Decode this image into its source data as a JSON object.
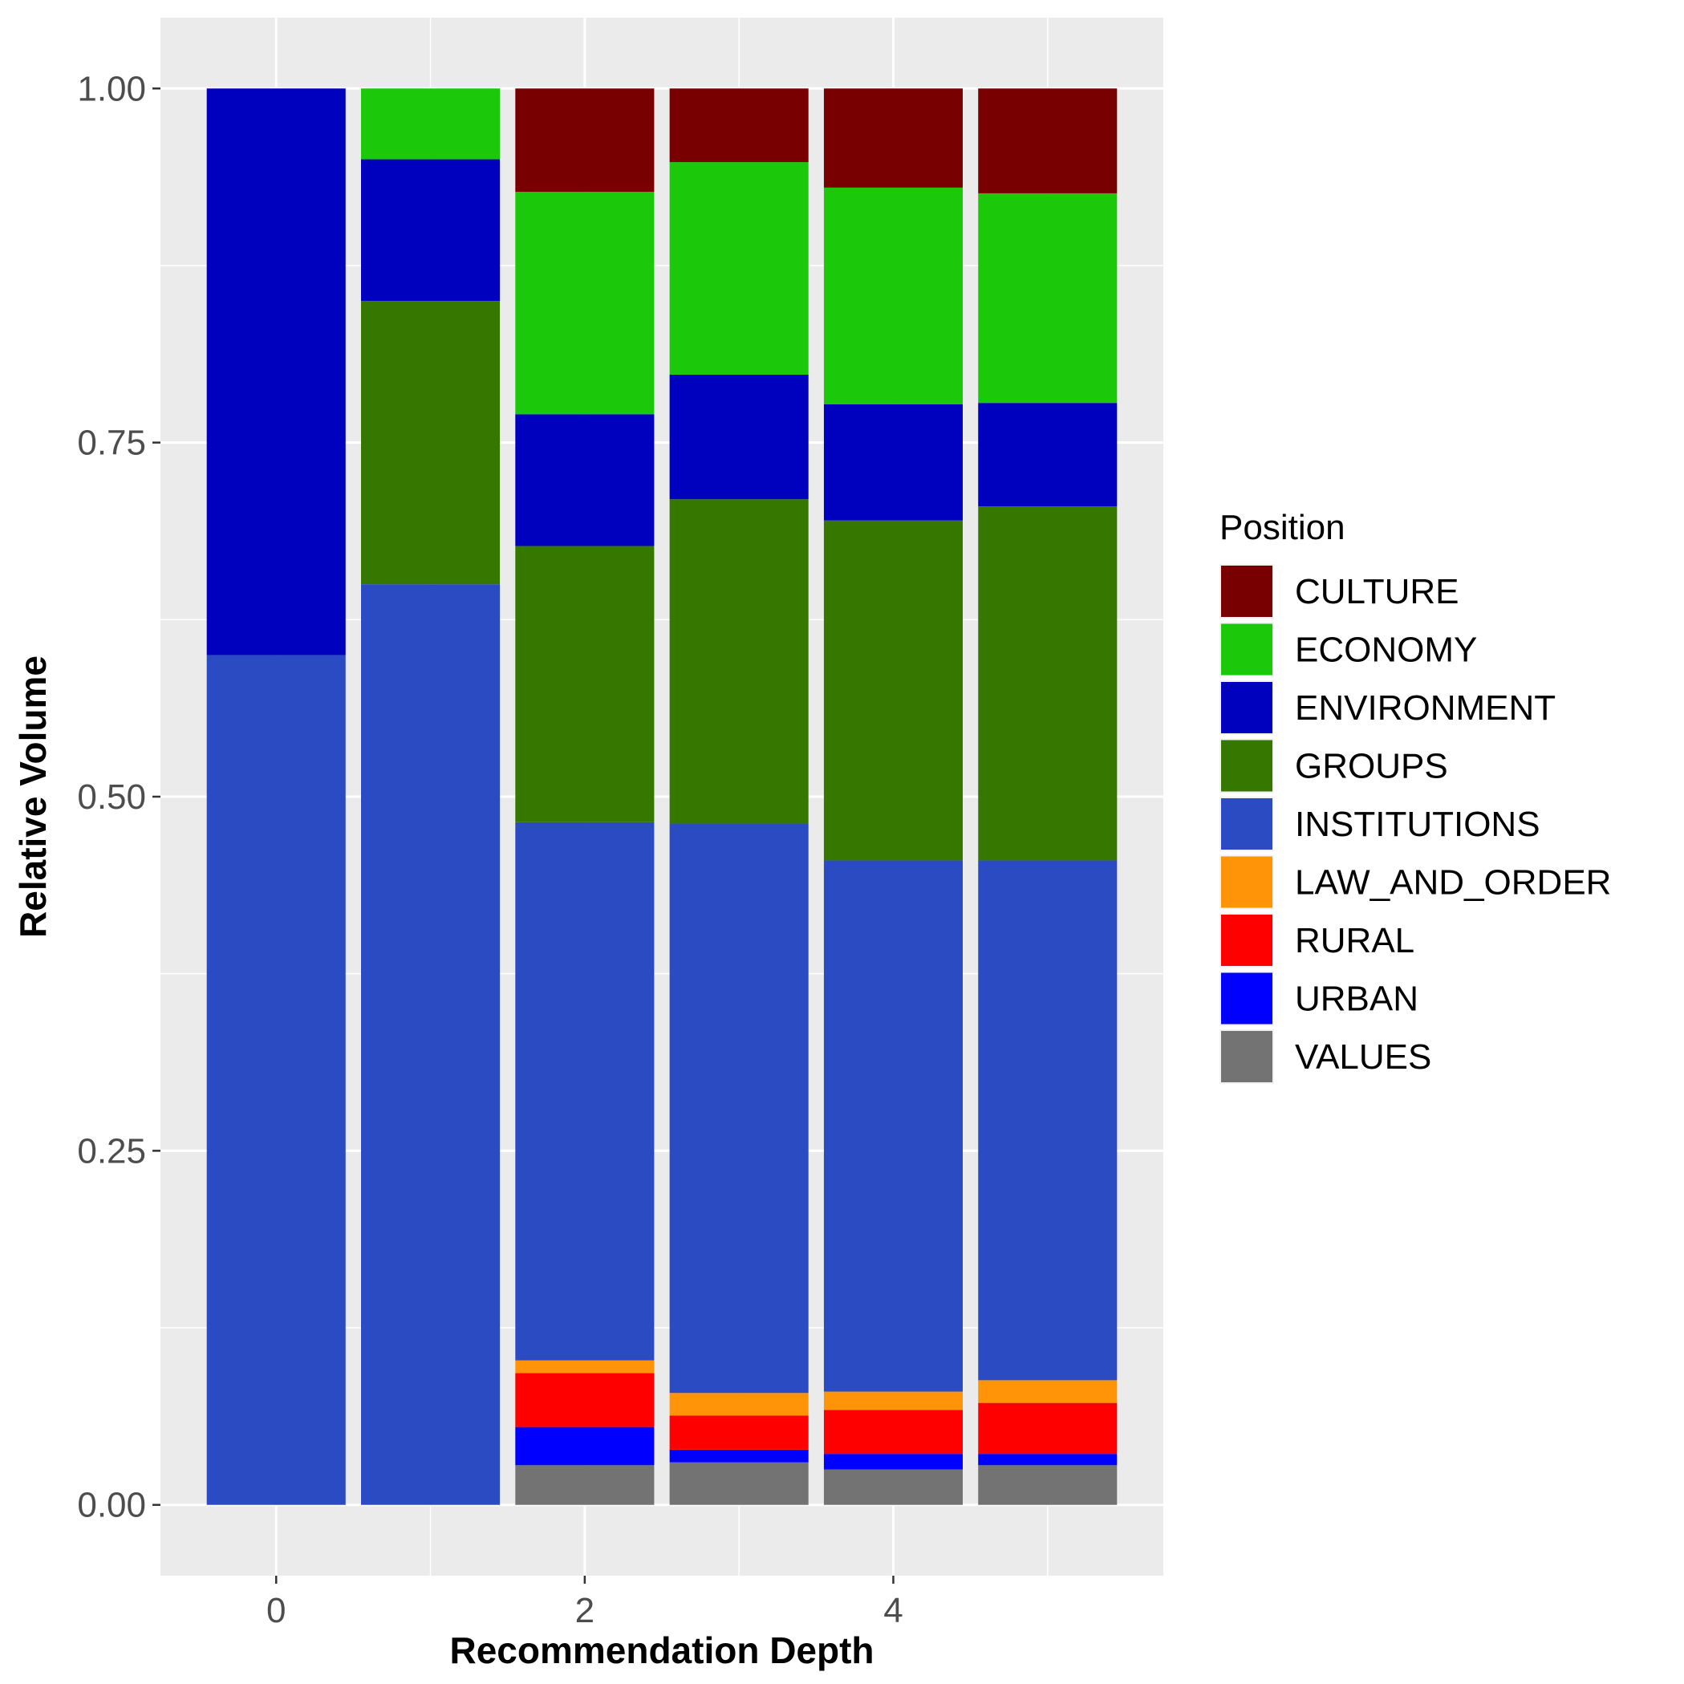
{
  "chart_data": {
    "type": "bar",
    "stacked": true,
    "xlabel": "Recommendation Depth",
    "ylabel": "Relative Volume",
    "x_ticks": [
      0,
      2,
      4
    ],
    "x_minor": [
      1,
      3,
      5
    ],
    "y_ticks": [
      "0.00",
      "0.25",
      "0.50",
      "0.75",
      "1.00"
    ],
    "y_tick_values": [
      0,
      0.25,
      0.5,
      0.75,
      1.0
    ],
    "xlim": [
      -0.75,
      5.75
    ],
    "ylim": [
      -0.05,
      1.05
    ],
    "grid": true,
    "legend_position": "right",
    "legend_title": "Position",
    "categories": [
      0,
      1,
      2,
      3,
      4,
      5
    ],
    "series": [
      {
        "name": "VALUES",
        "color": "#737373",
        "values": [
          0,
          0,
          0.028,
          0.03,
          0.025,
          0.028
        ]
      },
      {
        "name": "URBAN",
        "color": "#0000FF",
        "values": [
          0,
          0,
          0.027,
          0.009,
          0.011,
          0.008
        ]
      },
      {
        "name": "RURAL",
        "color": "#FF0000",
        "values": [
          0,
          0,
          0.038,
          0.024,
          0.031,
          0.036
        ]
      },
      {
        "name": "LAW_AND_ORDER",
        "color": "#FF9408",
        "values": [
          0,
          0,
          0.009,
          0.016,
          0.013,
          0.016
        ]
      },
      {
        "name": "INSTITUTIONS",
        "color": "#2B4BC2",
        "values": [
          0.6,
          0.65,
          0.38,
          0.402,
          0.375,
          0.367
        ]
      },
      {
        "name": "GROUPS",
        "color": "#367700",
        "values": [
          0,
          0.2,
          0.195,
          0.229,
          0.24,
          0.25
        ]
      },
      {
        "name": "ENVIRONMENT",
        "color": "#0000BF",
        "values": [
          0.4,
          0.1,
          0.093,
          0.088,
          0.082,
          0.073
        ]
      },
      {
        "name": "ECONOMY",
        "color": "#1BC80A",
        "values": [
          0,
          0.05,
          0.157,
          0.15,
          0.153,
          0.148
        ]
      },
      {
        "name": "CULTURE",
        "color": "#780000",
        "values": [
          0,
          0,
          0.073,
          0.052,
          0.07,
          0.074
        ]
      }
    ],
    "legend_order": [
      "CULTURE",
      "ECONOMY",
      "ENVIRONMENT",
      "GROUPS",
      "INSTITUTIONS",
      "LAW_AND_ORDER",
      "RURAL",
      "URBAN",
      "VALUES"
    ]
  }
}
